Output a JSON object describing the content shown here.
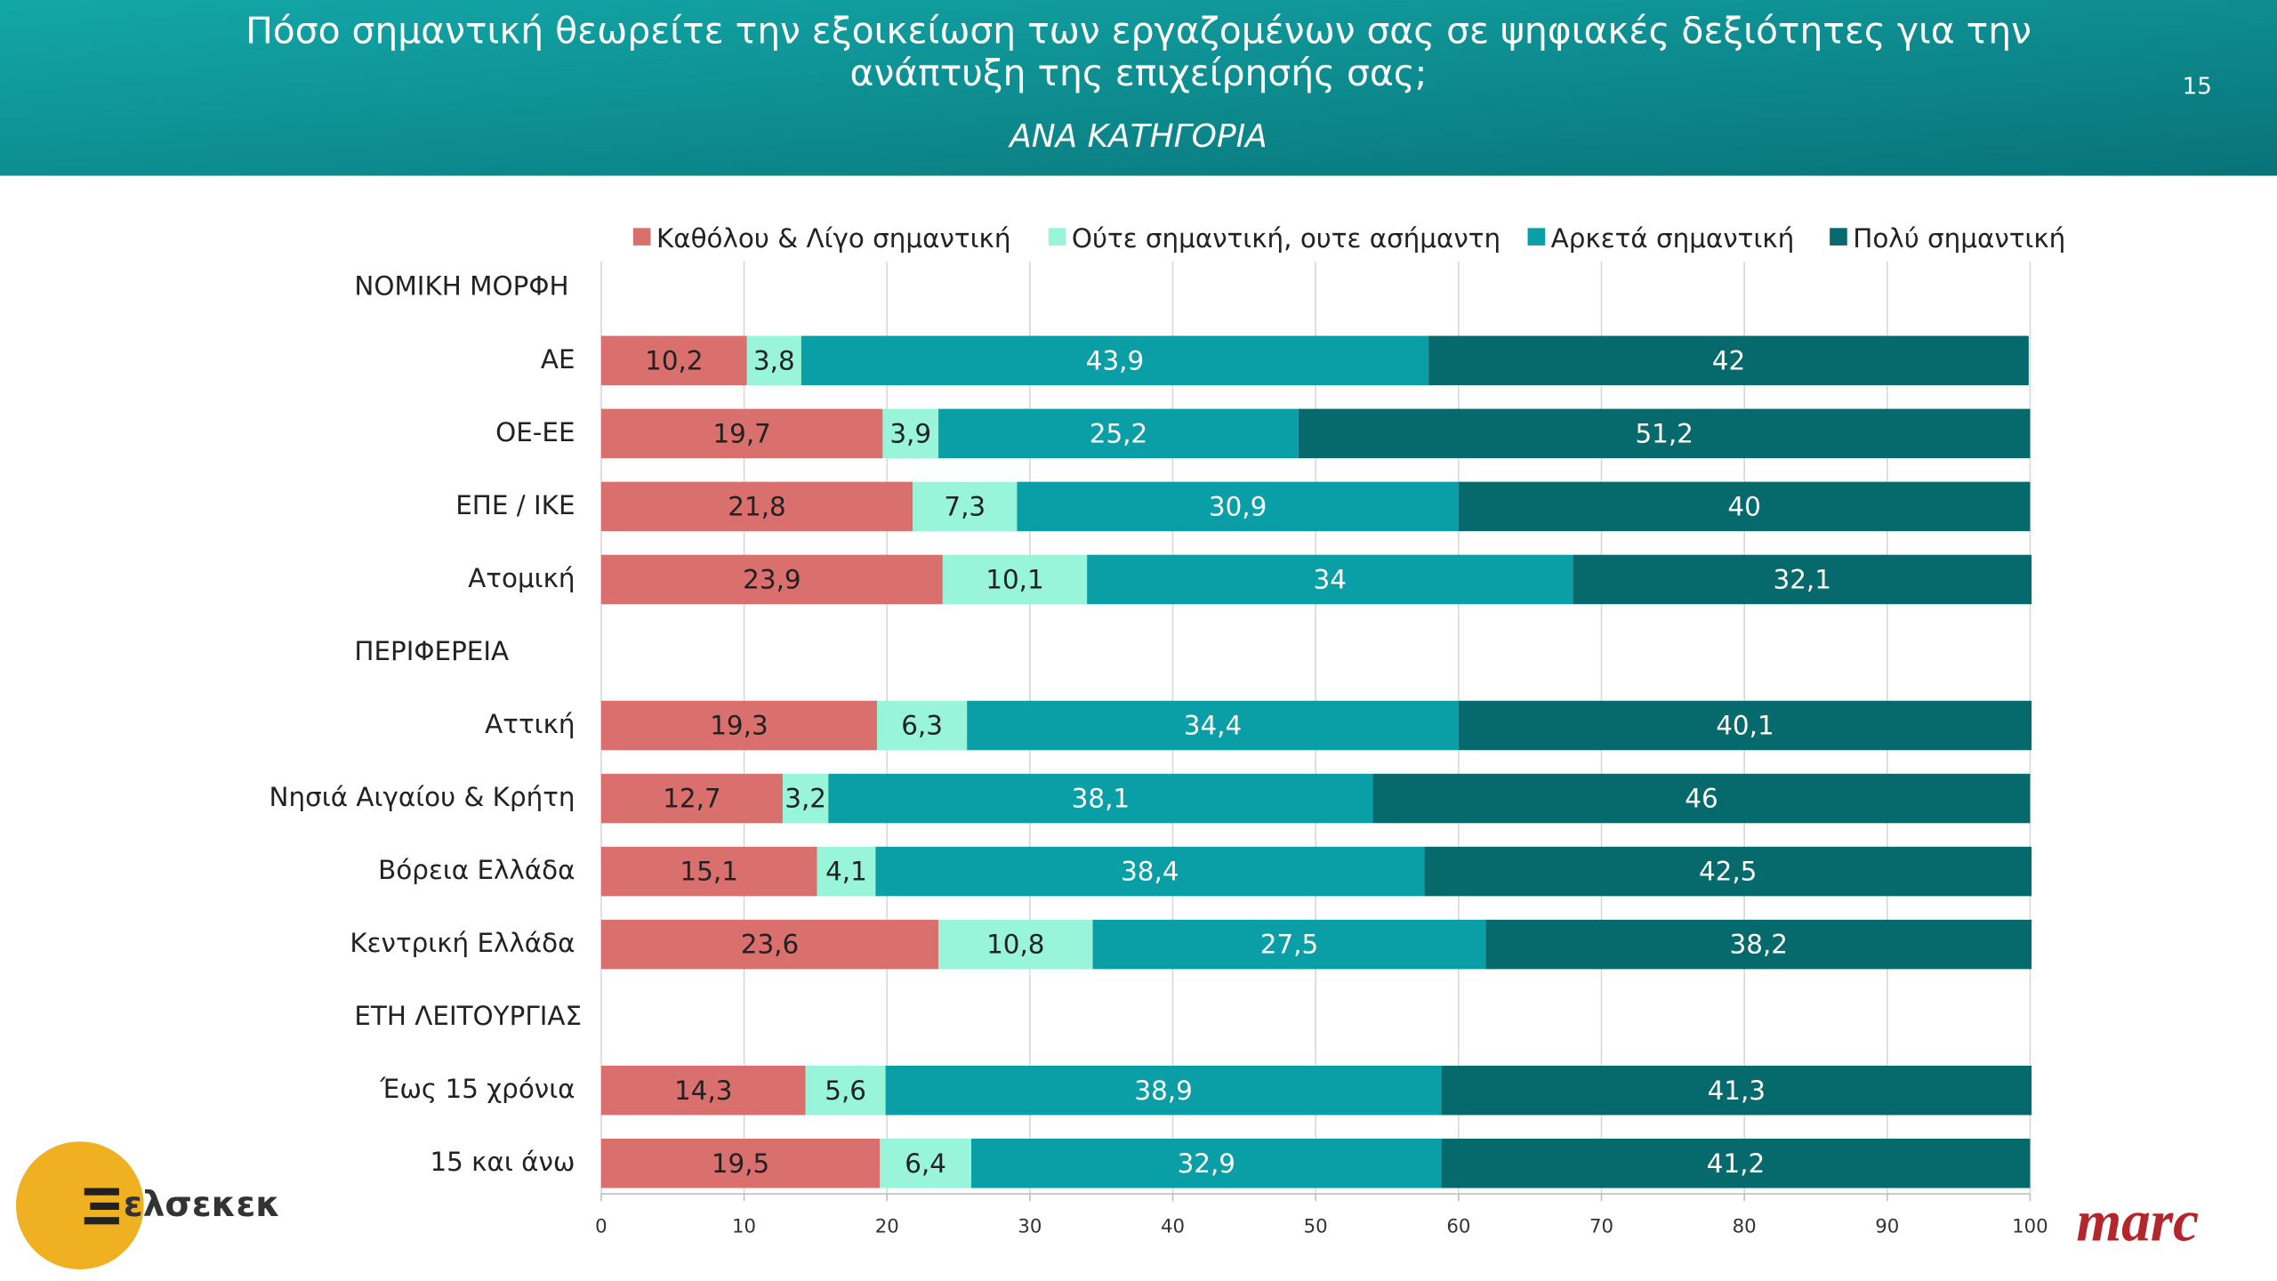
{
  "page_number": "15",
  "logos": {
    "left": "ελσεκεκ",
    "right": "marc"
  },
  "chart_data": {
    "type": "stacked_bar_horizontal",
    "title": "Πόσο σημαντική θεωρείτε την εξοικείωση των εργαζομένων σας σε ψηφιακές δεξιότητες για την ανάπτυξη της επιχείρησής σας;",
    "subtitle": "ΑΝΑ ΚΑΤΗΓΟΡΙΑ",
    "categories": [
      "ΝΟΜΙΚΗ ΜΟΡΦΗ",
      "ΑΕ",
      "ΟΕ-ΕΕ",
      "ΕΠΕ / ΙΚΕ",
      "Ατομική",
      "ΠΕΡΙΦΕΡΕΙΑ",
      "Αττική",
      "Νησιά Αιγαίου & Κρήτη",
      "Βόρεια Ελλάδα",
      "Κεντρική Ελλάδα",
      "ΕΤΗ ΛΕΙΤΟΥΡΓΙΑΣ",
      "Έως 15 χρόνια",
      "15 και άνω"
    ],
    "series": [
      {
        "name": "Καθόλου & Λίγο σημαντική",
        "color": "#d9706e",
        "values": [
          null,
          10.2,
          19.7,
          21.8,
          23.9,
          null,
          19.3,
          12.7,
          15.1,
          23.6,
          null,
          14.3,
          19.5
        ],
        "value_labels": [
          null,
          "10,2",
          "19,7",
          "21,8",
          "23,9",
          null,
          "19,3",
          "12,7",
          "15,1",
          "23,6",
          null,
          "14,3",
          "19,5"
        ]
      },
      {
        "name": "Ούτε σημαντική, ουτε ασήμαντη",
        "color": "#98f5da",
        "values": [
          null,
          3.8,
          3.9,
          7.3,
          10.1,
          null,
          6.3,
          3.2,
          4.1,
          10.8,
          null,
          5.6,
          6.4
        ],
        "value_labels": [
          null,
          "3,8",
          "3,9",
          "7,3",
          "10,1",
          null,
          "6,3",
          "3,2",
          "4,1",
          "10,8",
          null,
          "5,6",
          "6,4"
        ]
      },
      {
        "name": "Αρκετά σημαντική",
        "color": "#0a9fa6",
        "values": [
          null,
          43.9,
          25.2,
          30.9,
          34,
          null,
          34.4,
          38.1,
          38.4,
          27.5,
          null,
          38.9,
          32.9
        ],
        "value_labels": [
          null,
          "43,9",
          "25,2",
          "30,9",
          "34",
          null,
          "34,4",
          "38,1",
          "38,4",
          "27,5",
          null,
          "38,9",
          "32,9"
        ]
      },
      {
        "name": "Πολύ σημαντική",
        "color": "#066a6c",
        "values": [
          null,
          42,
          51.2,
          40,
          32.1,
          null,
          40.1,
          46,
          42.5,
          38.2,
          null,
          41.3,
          41.2
        ],
        "value_labels": [
          null,
          "42",
          "51,2",
          "40",
          "32,1",
          null,
          "40,1",
          "46",
          "42,5",
          "38,2",
          null,
          "41,3",
          "41,2"
        ]
      }
    ],
    "xlim": [
      0,
      100
    ],
    "xticks": [
      0,
      10,
      20,
      30,
      40,
      50,
      60,
      70,
      80,
      90,
      100
    ],
    "grid": true,
    "legend": "top"
  }
}
